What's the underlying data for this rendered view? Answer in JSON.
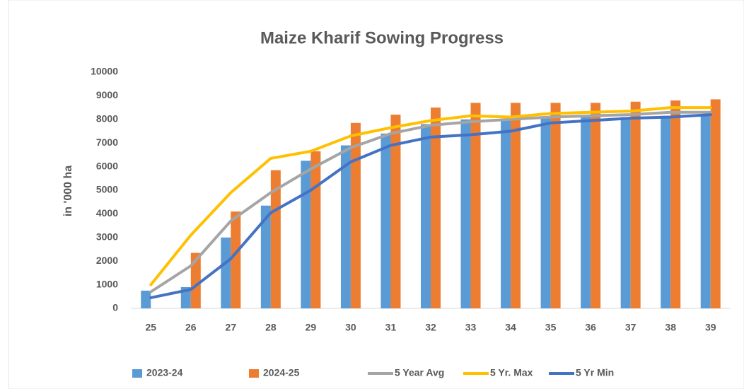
{
  "chart_data": {
    "type": "bar",
    "title": "Maize Kharif Sowing Progress",
    "y_label": "in '000 ha",
    "categories": [
      "25",
      "26",
      "27",
      "28",
      "29",
      "30",
      "31",
      "32",
      "33",
      "34",
      "35",
      "36",
      "37",
      "38",
      "39"
    ],
    "series": [
      {
        "name": "2023-24",
        "type": "bar",
        "color": "#5b9bd5",
        "values": [
          750,
          900,
          3000,
          4350,
          6250,
          6900,
          7400,
          7800,
          8000,
          8000,
          8050,
          8100,
          8100,
          8150,
          8200
        ]
      },
      {
        "name": "2024-25",
        "type": "bar",
        "color": "#ed7d31",
        "values": [
          null,
          2350,
          4100,
          5850,
          6650,
          7850,
          8200,
          8500,
          8700,
          8700,
          8700,
          8700,
          8750,
          8800,
          8850
        ]
      },
      {
        "name": "5 Year Avg",
        "type": "line",
        "color": "#a5a5a5",
        "values": [
          700,
          1800,
          3700,
          4900,
          5900,
          6800,
          7400,
          7750,
          7900,
          8000,
          8100,
          8150,
          8200,
          8300,
          8300
        ]
      },
      {
        "name": "5 Yr. Max",
        "type": "line",
        "color": "#ffc000",
        "values": [
          1000,
          3100,
          4900,
          6350,
          6650,
          7300,
          7650,
          7950,
          8150,
          8100,
          8250,
          8300,
          8350,
          8500,
          8500
        ]
      },
      {
        "name": "5 Yr Min",
        "type": "line",
        "color": "#4472c4",
        "values": [
          450,
          800,
          2100,
          4050,
          5000,
          6200,
          6900,
          7250,
          7350,
          7500,
          7850,
          7950,
          8050,
          8100,
          8200
        ]
      }
    ],
    "ylim": [
      0,
      10000
    ],
    "yticks": [
      0,
      1000,
      2000,
      3000,
      4000,
      5000,
      6000,
      7000,
      8000,
      9000,
      10000
    ],
    "grid": false,
    "legend": "bottom"
  }
}
